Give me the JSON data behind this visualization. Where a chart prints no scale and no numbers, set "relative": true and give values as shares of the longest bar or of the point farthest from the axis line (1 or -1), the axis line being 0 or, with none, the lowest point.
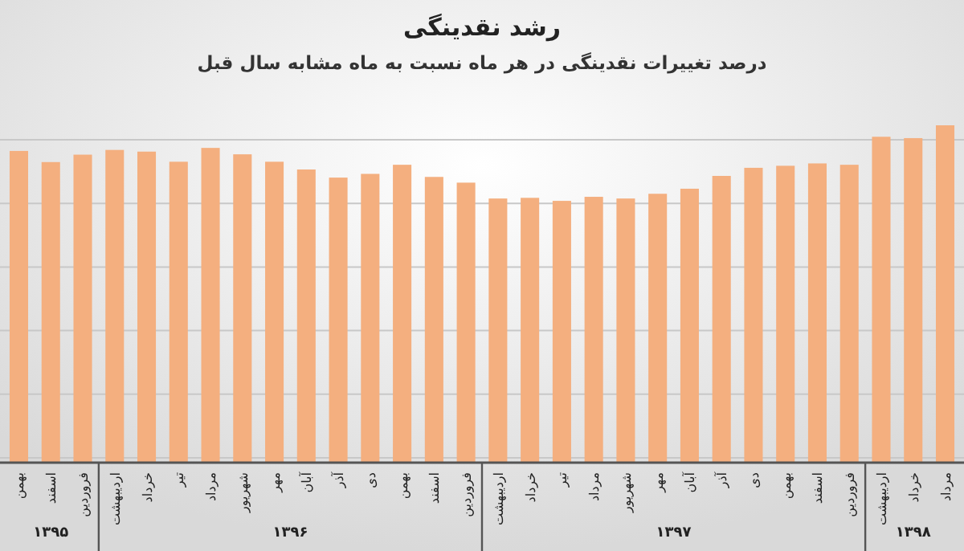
{
  "chart_data": {
    "type": "bar",
    "title": "رشد نقدینگی",
    "subtitle": "درصد تغییرات نقدینگی در هر ماه نسبت به ماه مشابه سال قبل",
    "categories": [
      "بهمن",
      "اسفند",
      "فروردین",
      "اردیبهشت",
      "خرداد",
      "تیر",
      "مرداد",
      "شهریور",
      "مهر",
      "آبان",
      "آذر",
      "دی",
      "بهمن",
      "اسفند",
      "فروردین",
      "اردیبهشت",
      "خرداد",
      "تیر",
      "مرداد",
      "شهریور",
      "مهر",
      "آبان",
      "آذر",
      "دی",
      "بهمن",
      "اسفند",
      "فروردین",
      "اردیبهشت",
      "خرداد",
      "مرداد"
    ],
    "values": [
      0.924,
      0.891,
      0.913,
      0.927,
      0.922,
      0.892,
      0.933,
      0.914,
      0.892,
      0.869,
      0.845,
      0.856,
      0.883,
      0.847,
      0.83,
      0.783,
      0.785,
      0.776,
      0.788,
      0.783,
      0.797,
      0.812,
      0.85,
      0.874,
      0.88,
      0.887,
      0.883,
      0.966,
      0.962,
      1
    ],
    "color": "#f4af7f",
    "relative": true,
    "grid": true,
    "annotations": [
      "۱۳۹۵",
      "۱۳۹۶",
      "۱۳۹۷",
      "۱۳۹۸"
    ]
  }
}
